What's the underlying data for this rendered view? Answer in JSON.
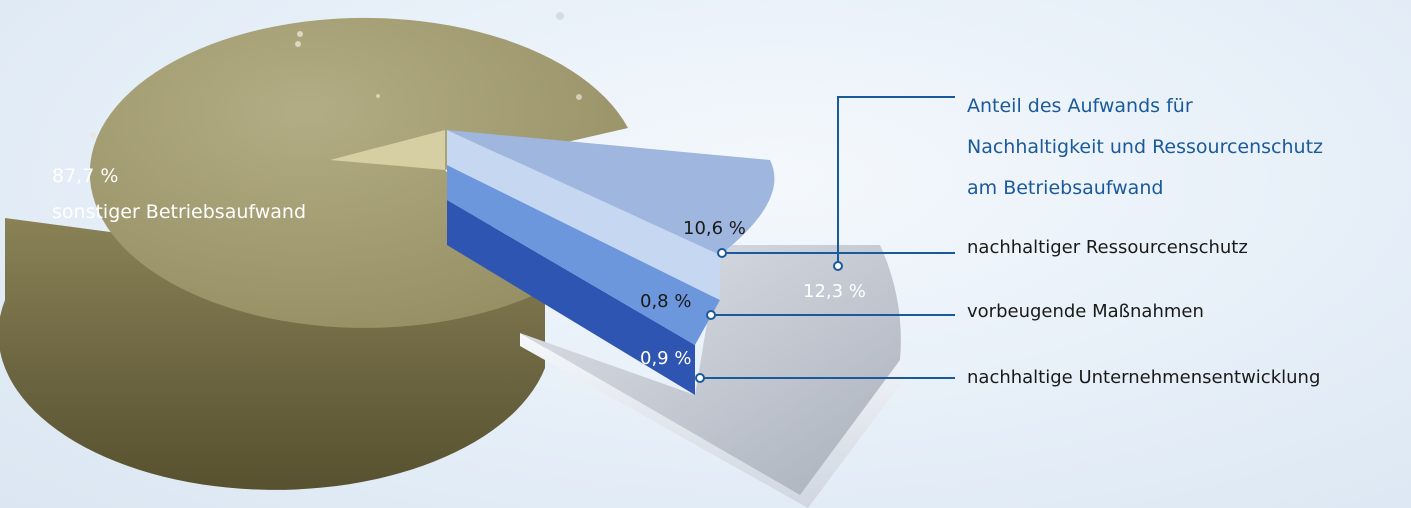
{
  "chart_data": {
    "type": "pie",
    "title": "",
    "slices": [
      {
        "label": "sonstiger Betriebsaufwand",
        "value": 87.7,
        "value_text": "87,7 %",
        "color": "#a19a6e"
      },
      {
        "label": "nachhaltiger Ressourcenschutz",
        "value": 10.6,
        "value_text": "10,6 %",
        "color": "#9fb6de"
      },
      {
        "label": "vorbeugende Maßnahmen",
        "value": 0.8,
        "value_text": "0,8 %",
        "color": "#6d97dc"
      },
      {
        "label": "nachhaltige Unternehmensentwicklung",
        "value": 0.9,
        "value_text": "0,9 %",
        "color": "#2f55b3"
      }
    ],
    "group": {
      "label": "Anteil des Aufwands für Nachhaltigkeit und Ressourcenschutz am Betriebsaufwand",
      "label_lines": [
        "Anteil des Aufwands für",
        "Nachhaltigkeit und Ressourcenschutz",
        "am Betriebsaufwand"
      ],
      "value": 12.3,
      "value_text": "12,3 %",
      "color": "#1b5a9a"
    }
  },
  "labels": {
    "big_pct": "87,7 %",
    "big_name": "sonstiger Betriebsaufwand"
  }
}
